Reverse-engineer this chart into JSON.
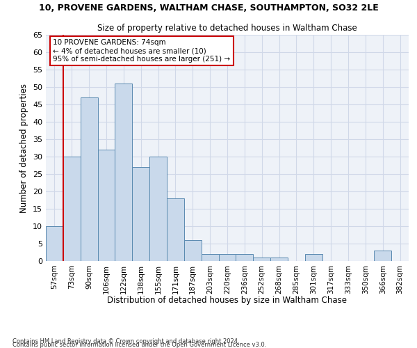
{
  "title1": "10, PROVENE GARDENS, WALTHAM CHASE, SOUTHAMPTON, SO32 2LE",
  "title2": "Size of property relative to detached houses in Waltham Chase",
  "xlabel": "Distribution of detached houses by size in Waltham Chase",
  "ylabel": "Number of detached properties",
  "categories": [
    "57sqm",
    "73sqm",
    "90sqm",
    "106sqm",
    "122sqm",
    "138sqm",
    "155sqm",
    "171sqm",
    "187sqm",
    "203sqm",
    "220sqm",
    "236sqm",
    "252sqm",
    "268sqm",
    "285sqm",
    "301sqm",
    "317sqm",
    "333sqm",
    "350sqm",
    "366sqm",
    "382sqm"
  ],
  "values": [
    10,
    30,
    47,
    32,
    51,
    27,
    30,
    18,
    6,
    2,
    2,
    2,
    1,
    1,
    0,
    2,
    0,
    0,
    0,
    3,
    0
  ],
  "bar_color": "#c9d9eb",
  "bar_edge_color": "#5a8ab0",
  "grid_color": "#d0d8e8",
  "bg_color": "#eef2f8",
  "vline_color": "#cc0000",
  "annotation_text": "10 PROVENE GARDENS: 74sqm\n← 4% of detached houses are smaller (10)\n95% of semi-detached houses are larger (251) →",
  "annotation_box_color": "#ffffff",
  "annotation_box_edge": "#cc0000",
  "footer1": "Contains HM Land Registry data © Crown copyright and database right 2024.",
  "footer2": "Contains public sector information licensed under the Open Government Licence v3.0.",
  "ylim": [
    0,
    65
  ],
  "yticks": [
    0,
    5,
    10,
    15,
    20,
    25,
    30,
    35,
    40,
    45,
    50,
    55,
    60,
    65
  ]
}
